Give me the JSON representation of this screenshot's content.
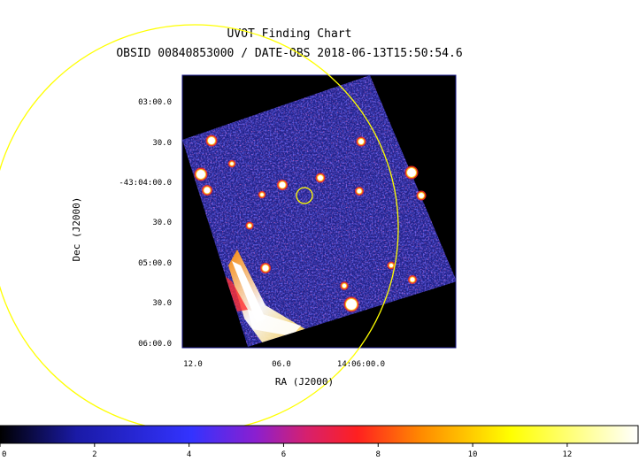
{
  "header": {
    "title": "UVOT Finding Chart",
    "subtitle": "OBSID 00840853000 / DATE-OBS 2018-06-13T15:50:54.6"
  },
  "chart_data": {
    "type": "heatmap",
    "title": "UVOT Finding Chart",
    "subtitle": "OBSID 00840853000 / DATE-OBS 2018-06-13T15:50:54.6",
    "xlabel": "RA (J2000)",
    "ylabel": "Dec (J2000)",
    "x_ticks": [
      "12.0",
      "06.0",
      "14:06:00.0"
    ],
    "y_ticks": [
      "03:00.0",
      "30.0",
      "-43:04:00.0",
      "30.0",
      "05:00.0",
      "30.0",
      "06:00.0"
    ],
    "colorbar": {
      "ticks": [
        "0",
        "2",
        "4",
        "6",
        "8",
        "10",
        "12"
      ],
      "range": [
        0,
        13.5
      ],
      "colormap": "bb",
      "colors": [
        "#000000",
        "#1a1aa6",
        "#3333ff",
        "#8a1fd0",
        "#d6206e",
        "#ff2020",
        "#ff8a00",
        "#ffff00",
        "#ffffff"
      ]
    },
    "overlays": [
      {
        "name": "error-circle-small",
        "color": "#ffff00"
      },
      {
        "name": "error-circle-large",
        "color": "#ffff00"
      }
    ],
    "grid": false
  }
}
